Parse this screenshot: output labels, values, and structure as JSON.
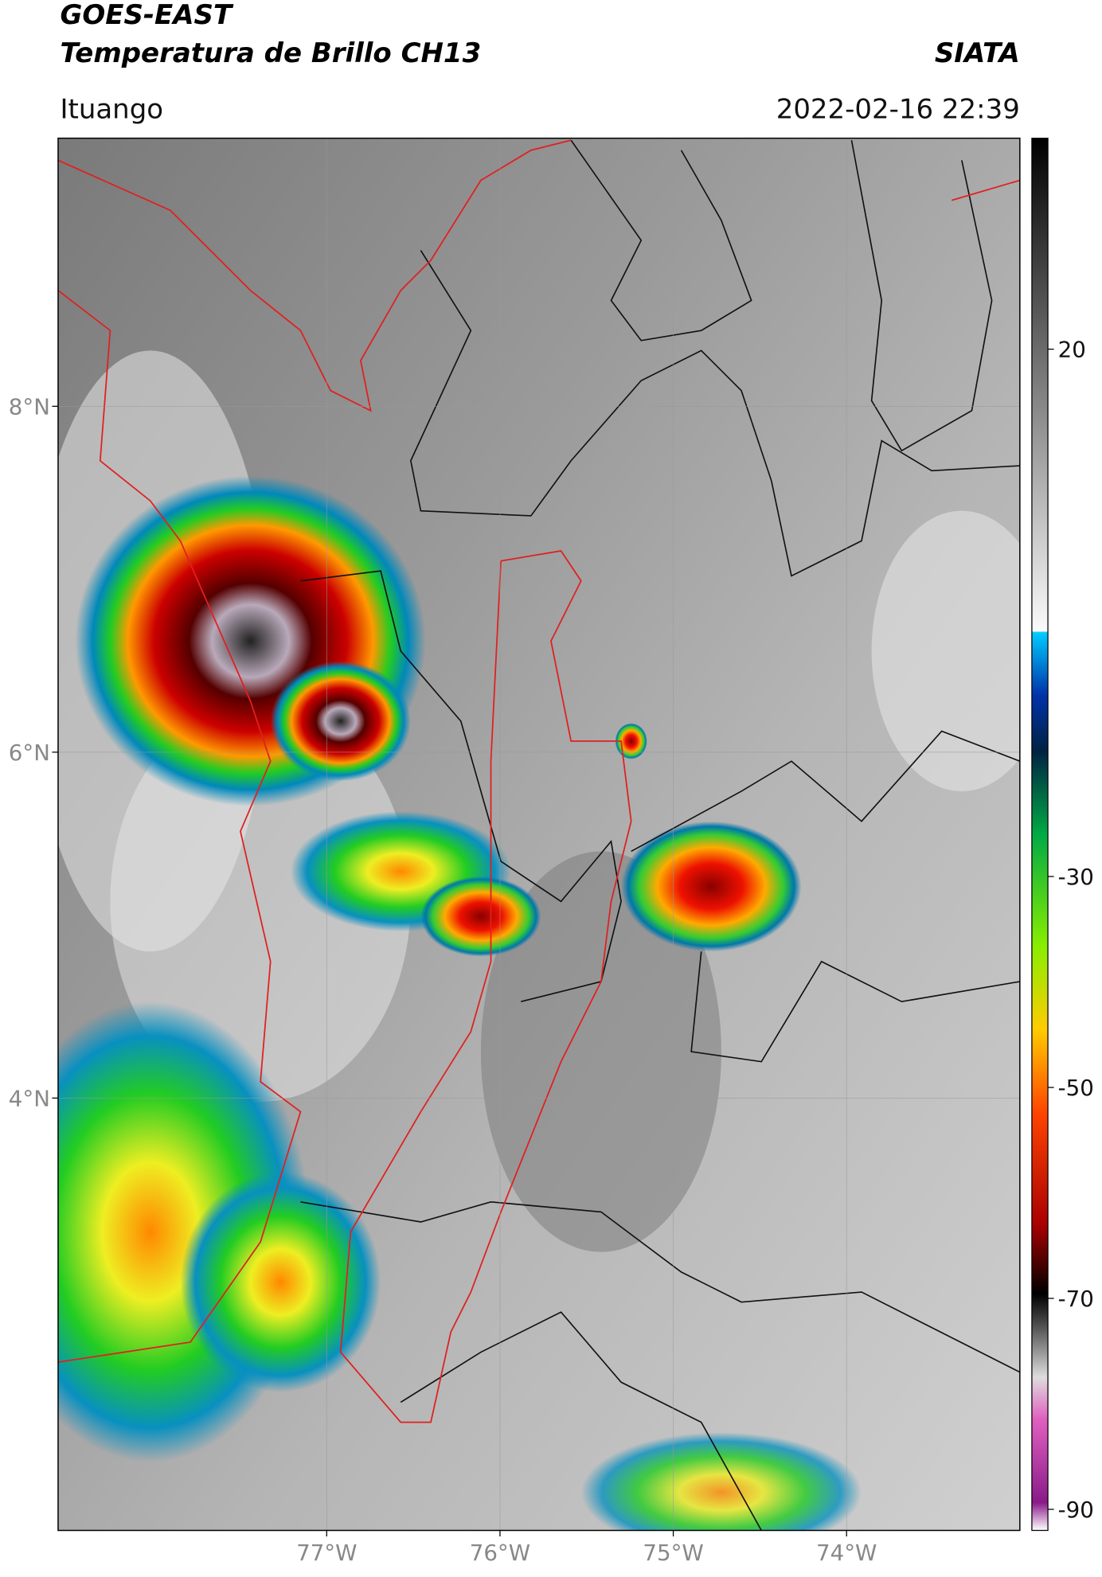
{
  "map": {
    "title": "GOES-EAST",
    "subtitle": "Temperatura de Brillo CH13",
    "source": "SIATA",
    "location": "Ituango",
    "datetime": "2022-02-16 22:39",
    "lonlim": [
      -78.55,
      -73.0
    ],
    "latlim": [
      1.5,
      9.55
    ],
    "lon_ticks": [
      {
        "value": -77,
        "label": "77°W"
      },
      {
        "value": -76,
        "label": "76°W"
      },
      {
        "value": -75,
        "label": "75°W"
      },
      {
        "value": -74,
        "label": "74°W"
      }
    ],
    "lat_ticks": [
      {
        "value": 8,
        "label": "8°N"
      },
      {
        "value": 6,
        "label": "6°N"
      },
      {
        "value": 4,
        "label": "4°N"
      }
    ],
    "colorbar": {
      "lim": [
        -92,
        40
      ],
      "ticks": [
        20,
        -30,
        -50,
        -70,
        -90
      ]
    }
  }
}
